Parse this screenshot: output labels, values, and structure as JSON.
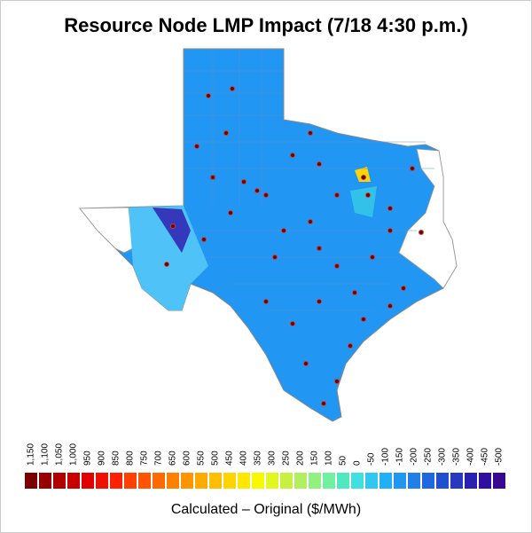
{
  "title": "Resource Node LMP Impact (7/18 4:30 p.m.)",
  "legend": {
    "label": "Calculated – Original ($/MWh)",
    "ticks": [
      "1,150",
      "1,100",
      "1,050",
      "1,000",
      "950",
      "900",
      "850",
      "800",
      "750",
      "700",
      "650",
      "600",
      "550",
      "500",
      "450",
      "400",
      "350",
      "300",
      "250",
      "200",
      "150",
      "100",
      "50",
      "0",
      "-50",
      "-100",
      "-150",
      "-200",
      "-250",
      "-300",
      "-350",
      "-400",
      "-450",
      "-500"
    ],
    "colors": [
      "#7a0000",
      "#960000",
      "#b00000",
      "#c80000",
      "#e00000",
      "#f01000",
      "#ff2000",
      "#ff4000",
      "#ff5500",
      "#ff6a00",
      "#ff8000",
      "#ff9500",
      "#ffaa00",
      "#ffbf00",
      "#ffd400",
      "#ffe800",
      "#f8f800",
      "#e0f820",
      "#c8f040",
      "#b0f060",
      "#90f080",
      "#70f0a0",
      "#50e8c0",
      "#40e0e0",
      "#30c8f0",
      "#20b0f8",
      "#2098f0",
      "#2080e8",
      "#2068e0",
      "#2050d0",
      "#2838c0",
      "#2820b0",
      "#3010a0",
      "#380890"
    ]
  }
}
